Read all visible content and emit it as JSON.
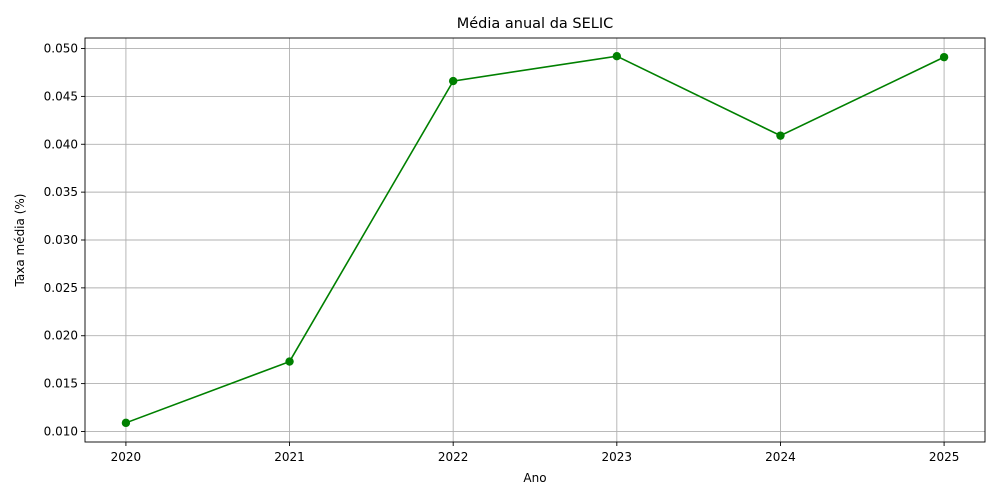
{
  "chart_data": {
    "type": "line",
    "title": "Média anual da SELIC",
    "xlabel": "Ano",
    "ylabel": "Taxa média (%)",
    "x": [
      2020,
      2021,
      2022,
      2023,
      2024,
      2025
    ],
    "x_tick_labels": [
      "2020",
      "2021",
      "2022",
      "2023",
      "2024",
      "2025"
    ],
    "y_ticks": [
      0.01,
      0.015,
      0.02,
      0.025,
      0.03,
      0.035,
      0.04,
      0.045,
      0.05
    ],
    "y_tick_labels": [
      "0.010",
      "0.015",
      "0.020",
      "0.025",
      "0.030",
      "0.035",
      "0.040",
      "0.045",
      "0.050"
    ],
    "xlim": [
      2019.75,
      2025.25
    ],
    "ylim": [
      0.0089,
      0.0511
    ],
    "grid": true,
    "marker": "circle",
    "series": [
      {
        "values": [
          0.0109,
          0.0173,
          0.0466,
          0.0492,
          0.0409,
          0.0491
        ],
        "color": "#008000"
      }
    ]
  }
}
